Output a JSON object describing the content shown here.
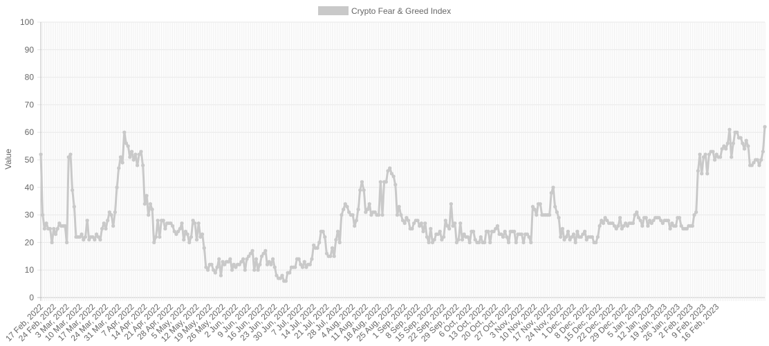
{
  "chart_data": {
    "type": "line",
    "ylabel": "Value",
    "xlabel": "",
    "ylim": [
      0,
      100
    ],
    "yticks": [
      0,
      10,
      20,
      30,
      40,
      50,
      60,
      70,
      80,
      90,
      100
    ],
    "grid": true,
    "legend_position": "top-center",
    "series": [
      {
        "name": "Crypto Fear & Greed Index",
        "color": "#c9c9c9",
        "start_date": "2022-02-17",
        "values": [
          52,
          30,
          25,
          27,
          25,
          25,
          20,
          25,
          23,
          25,
          27,
          26,
          26,
          26,
          20,
          51,
          52,
          39,
          33,
          22,
          22,
          22,
          23,
          21,
          22,
          28,
          21,
          22,
          22,
          21,
          23,
          22,
          21,
          25,
          27,
          25,
          28,
          31,
          30,
          26,
          31,
          40,
          47,
          51,
          49,
          60,
          56,
          55,
          51,
          53,
          50,
          52,
          48,
          52,
          53,
          48,
          34,
          37,
          30,
          34,
          32,
          20,
          22,
          28,
          22,
          28,
          28,
          25,
          27,
          27,
          27,
          26,
          24,
          23,
          24,
          25,
          27,
          21,
          24,
          23,
          20,
          22,
          28,
          27,
          21,
          27,
          22,
          23,
          18,
          11,
          10,
          12,
          12,
          10,
          9,
          11,
          14,
          8,
          13,
          12,
          13,
          13,
          14,
          10,
          12,
          11,
          12,
          12,
          13,
          14,
          10,
          14,
          15,
          16,
          17,
          10,
          14,
          10,
          12,
          15,
          16,
          17,
          12,
          13,
          12,
          14,
          11,
          8,
          7,
          7,
          8,
          6,
          6,
          9,
          9,
          11,
          11,
          11,
          14,
          14,
          12,
          11,
          13,
          11,
          12,
          12,
          14,
          19,
          18,
          18,
          20,
          24,
          24,
          22,
          16,
          15,
          15,
          18,
          15,
          21,
          24,
          20,
          30,
          32,
          34,
          33,
          31,
          30,
          30,
          26,
          28,
          32,
          39,
          42,
          39,
          31,
          32,
          34,
          30,
          31,
          31,
          30,
          30,
          42,
          30,
          42,
          42,
          46,
          47,
          45,
          44,
          41,
          30,
          33,
          30,
          28,
          27,
          29,
          28,
          25,
          25,
          27,
          28,
          28,
          26,
          27,
          24,
          27,
          22,
          20,
          25,
          20,
          21,
          23,
          23,
          24,
          21,
          22,
          28,
          26,
          25,
          34,
          26,
          27,
          20,
          21,
          27,
          21,
          23,
          22,
          22,
          20,
          24,
          24,
          21,
          20,
          20,
          22,
          20,
          20,
          24,
          24,
          20,
          24,
          24,
          25,
          26,
          23,
          23,
          22,
          24,
          22,
          20,
          24,
          24,
          24,
          20,
          23,
          23,
          23,
          20,
          23,
          23,
          22,
          20,
          33,
          32,
          30,
          34,
          34,
          30,
          30,
          30,
          30,
          30,
          38,
          40,
          33,
          31,
          29,
          22,
          25,
          21,
          22,
          24,
          21,
          22,
          23,
          20,
          24,
          22,
          22,
          23,
          24,
          21,
          22,
          22,
          22,
          20,
          20,
          22,
          26,
          28,
          27,
          29,
          28,
          27,
          27,
          27,
          26,
          25,
          26,
          29,
          25,
          26,
          27,
          26,
          27,
          27,
          27,
          30,
          31,
          29,
          28,
          26,
          29,
          29,
          26,
          28,
          27,
          28,
          29,
          29,
          29,
          28,
          27,
          28,
          28,
          28,
          25,
          27,
          26,
          26,
          29,
          29,
          26,
          25,
          25,
          25,
          26,
          26,
          26,
          30,
          31,
          46,
          52,
          45,
          51,
          52,
          45,
          52,
          53,
          53,
          50,
          52,
          51,
          51,
          54,
          55,
          54,
          56,
          61,
          51,
          56,
          60,
          60,
          58,
          58,
          56,
          54,
          57,
          55,
          48,
          48,
          49,
          50,
          50,
          48,
          50,
          53,
          62
        ]
      }
    ],
    "x_tick_labels": [
      "17 Feb, 2022",
      "24 Feb, 2022",
      "3 Mar, 2022",
      "10 Mar, 2022",
      "17 Mar, 2022",
      "24 Mar, 2022",
      "31 Mar, 2022",
      "7 Apr, 2022",
      "14 Apr, 2022",
      "21 Apr, 2022",
      "28 Apr, 2022",
      "5 May, 2022",
      "12 May, 2022",
      "19 May, 2022",
      "26 May, 2022",
      "2 Jun, 2022",
      "9 Jun, 2022",
      "16 Jun, 2022",
      "23 Jun, 2022",
      "30 Jun, 2022",
      "7 Jul, 2022",
      "14 Jul, 2022",
      "21 Jul, 2022",
      "28 Jul, 2022",
      "4 Aug, 2022",
      "11 Aug, 2022",
      "18 Aug, 2022",
      "25 Aug, 2022",
      "1 Sep, 2022",
      "8 Sep, 2022",
      "15 Sep, 2022",
      "22 Sep, 2022",
      "29 Sep, 2022",
      "6 Oct, 2022",
      "13 Oct, 2022",
      "20 Oct, 2022",
      "27 Oct, 2022",
      "3 Nov, 2022",
      "10 Nov, 2022",
      "17 Nov, 2022",
      "24 Nov, 2022",
      "1 Dec, 2022",
      "8 Dec, 2022",
      "15 Dec, 2022",
      "22 Dec, 2022",
      "29 Dec, 2022",
      "5 Jan, 2023",
      "12 Jan, 2023",
      "19 Jan, 2023",
      "26 Jan, 2023",
      "2 Feb, 2023",
      "9 Feb, 2023",
      "16 Feb, 2023"
    ]
  }
}
